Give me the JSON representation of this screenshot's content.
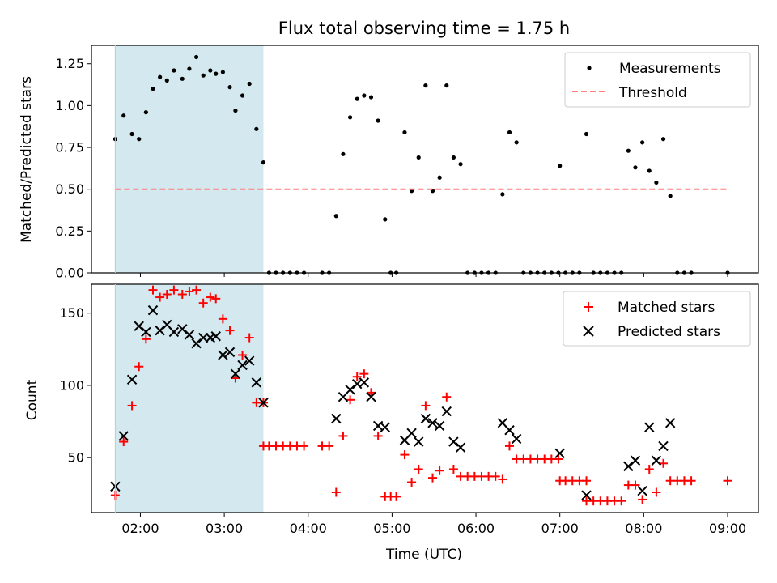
{
  "chart_data": [
    {
      "type": "scatter",
      "title": "Flux total observing time = 1.75 h",
      "xlabel": "",
      "ylabel": "Matched/Predicted stars",
      "x_unit": "time (UTC)",
      "xlim": [
        "01:25",
        "09:22"
      ],
      "ylim": [
        0,
        1.36
      ],
      "yticks": [
        0.0,
        0.25,
        0.5,
        0.75,
        1.0,
        1.25
      ],
      "ytick_labels": [
        "0.00",
        "0.25",
        "0.50",
        "0.75",
        "1.00",
        "1.25"
      ],
      "xticks": [
        "02:00",
        "03:00",
        "04:00",
        "05:00",
        "06:00",
        "07:00",
        "08:00",
        "09:00"
      ],
      "shaded_interval": {
        "from": "01:42",
        "to": "03:28",
        "color": "#d3e9ef"
      },
      "legend": {
        "position": "top-right",
        "entries": [
          "Measurements",
          "Threshold"
        ]
      },
      "series": [
        {
          "name": "Measurements",
          "marker": "dot",
          "color": "#000000",
          "points": [
            [
              "01:42",
              0.8
            ],
            [
              "01:48",
              0.94
            ],
            [
              "01:54",
              0.83
            ],
            [
              "01:59",
              0.8
            ],
            [
              "02:04",
              0.96
            ],
            [
              "02:09",
              1.1
            ],
            [
              "02:14",
              1.17
            ],
            [
              "02:19",
              1.15
            ],
            [
              "02:24",
              1.21
            ],
            [
              "02:30",
              1.16
            ],
            [
              "02:35",
              1.22
            ],
            [
              "02:40",
              1.29
            ],
            [
              "02:45",
              1.18
            ],
            [
              "02:50",
              1.21
            ],
            [
              "02:54",
              1.19
            ],
            [
              "02:59",
              1.2
            ],
            [
              "03:04",
              1.11
            ],
            [
              "03:08",
              0.97
            ],
            [
              "03:13",
              1.06
            ],
            [
              "03:18",
              1.13
            ],
            [
              "03:23",
              0.86
            ],
            [
              "03:28",
              0.66
            ],
            [
              "03:32",
              0.0
            ],
            [
              "03:37",
              0.0
            ],
            [
              "03:42",
              0.0
            ],
            [
              "03:47",
              0.0
            ],
            [
              "03:52",
              0.0
            ],
            [
              "03:57",
              0.0
            ],
            [
              "04:10",
              0.0
            ],
            [
              "04:15",
              0.0
            ],
            [
              "04:20",
              0.34
            ],
            [
              "04:25",
              0.71
            ],
            [
              "04:30",
              0.93
            ],
            [
              "04:35",
              1.04
            ],
            [
              "04:40",
              1.06
            ],
            [
              "04:45",
              1.05
            ],
            [
              "04:50",
              0.91
            ],
            [
              "04:55",
              0.32
            ],
            [
              "04:59",
              0.0
            ],
            [
              "05:03",
              0.0
            ],
            [
              "05:09",
              0.84
            ],
            [
              "05:14",
              0.49
            ],
            [
              "05:19",
              0.69
            ],
            [
              "05:24",
              1.12
            ],
            [
              "05:29",
              0.49
            ],
            [
              "05:34",
              0.57
            ],
            [
              "05:39",
              1.12
            ],
            [
              "05:44",
              0.69
            ],
            [
              "05:49",
              0.65
            ],
            [
              "05:54",
              0.0
            ],
            [
              "05:59",
              0.0
            ],
            [
              "06:04",
              0.0
            ],
            [
              "06:09",
              0.0
            ],
            [
              "06:14",
              0.0
            ],
            [
              "06:19",
              0.47
            ],
            [
              "06:24",
              0.84
            ],
            [
              "06:29",
              0.78
            ],
            [
              "06:34",
              0.0
            ],
            [
              "06:39",
              0.0
            ],
            [
              "06:44",
              0.0
            ],
            [
              "06:49",
              0.0
            ],
            [
              "06:54",
              0.0
            ],
            [
              "06:59",
              0.0
            ],
            [
              "07:00",
              0.64
            ],
            [
              "07:04",
              0.0
            ],
            [
              "07:09",
              0.0
            ],
            [
              "07:14",
              0.0
            ],
            [
              "07:19",
              0.83
            ],
            [
              "07:24",
              0.0
            ],
            [
              "07:29",
              0.0
            ],
            [
              "07:34",
              0.0
            ],
            [
              "07:39",
              0.0
            ],
            [
              "07:44",
              0.0
            ],
            [
              "07:49",
              0.73
            ],
            [
              "07:54",
              0.63
            ],
            [
              "07:59",
              0.78
            ],
            [
              "08:04",
              0.61
            ],
            [
              "08:09",
              0.54
            ],
            [
              "08:14",
              0.8
            ],
            [
              "08:19",
              0.46
            ],
            [
              "08:24",
              0.0
            ],
            [
              "08:29",
              0.0
            ],
            [
              "08:34",
              0.0
            ],
            [
              "09:00",
              0.0
            ]
          ]
        },
        {
          "name": "Threshold",
          "style": "dashed",
          "color": "#ff7f7f",
          "points": [
            [
              "01:42",
              0.5
            ],
            [
              "09:00",
              0.5
            ]
          ]
        }
      ]
    },
    {
      "type": "scatter",
      "title": "",
      "xlabel": "Time (UTC)",
      "ylabel": "Count",
      "xlim": [
        "01:25",
        "09:22"
      ],
      "ylim": [
        12,
        170
      ],
      "yticks": [
        50,
        100,
        150
      ],
      "ytick_labels": [
        "50",
        "100",
        "150"
      ],
      "xticks": [
        "02:00",
        "03:00",
        "04:00",
        "05:00",
        "06:00",
        "07:00",
        "08:00",
        "09:00"
      ],
      "xtick_labels": [
        "02:00",
        "03:00",
        "04:00",
        "05:00",
        "06:00",
        "07:00",
        "08:00",
        "09:00"
      ],
      "shaded_interval": {
        "from": "01:42",
        "to": "03:28",
        "color": "#d3e9ef"
      },
      "legend": {
        "position": "top-right",
        "entries": [
          "Matched stars",
          "Predicted stars"
        ]
      },
      "series": [
        {
          "name": "Matched stars",
          "marker": "plus",
          "color": "#ff0000",
          "points": [
            [
              "01:42",
              24
            ],
            [
              "01:48",
              61
            ],
            [
              "01:54",
              86
            ],
            [
              "01:59",
              113
            ],
            [
              "02:04",
              132
            ],
            [
              "02:09",
              166
            ],
            [
              "02:14",
              161
            ],
            [
              "02:19",
              163
            ],
            [
              "02:24",
              166
            ],
            [
              "02:30",
              163
            ],
            [
              "02:35",
              165
            ],
            [
              "02:40",
              166
            ],
            [
              "02:45",
              157
            ],
            [
              "02:50",
              161
            ],
            [
              "02:54",
              160
            ],
            [
              "02:59",
              146
            ],
            [
              "03:04",
              138
            ],
            [
              "03:08",
              105
            ],
            [
              "03:13",
              121
            ],
            [
              "03:18",
              133
            ],
            [
              "03:23",
              88
            ],
            [
              "03:28",
              88
            ],
            [
              "03:28",
              58
            ],
            [
              "03:32",
              58
            ],
            [
              "03:37",
              58
            ],
            [
              "03:42",
              58
            ],
            [
              "03:47",
              58
            ],
            [
              "03:52",
              58
            ],
            [
              "03:57",
              58
            ],
            [
              "04:10",
              58
            ],
            [
              "04:15",
              58
            ],
            [
              "04:20",
              26
            ],
            [
              "04:25",
              65
            ],
            [
              "04:30",
              90
            ],
            [
              "04:35",
              106
            ],
            [
              "04:40",
              108
            ],
            [
              "04:45",
              95
            ],
            [
              "04:50",
              65
            ],
            [
              "04:55",
              23
            ],
            [
              "04:59",
              23
            ],
            [
              "05:03",
              23
            ],
            [
              "05:09",
              52
            ],
            [
              "05:14",
              33
            ],
            [
              "05:19",
              42
            ],
            [
              "05:24",
              86
            ],
            [
              "05:29",
              36
            ],
            [
              "05:34",
              41
            ],
            [
              "05:39",
              92
            ],
            [
              "05:44",
              42
            ],
            [
              "05:49",
              37
            ],
            [
              "05:54",
              37
            ],
            [
              "05:59",
              37
            ],
            [
              "06:04",
              37
            ],
            [
              "06:09",
              37
            ],
            [
              "06:14",
              37
            ],
            [
              "06:19",
              35
            ],
            [
              "06:24",
              58
            ],
            [
              "06:29",
              49
            ],
            [
              "06:34",
              49
            ],
            [
              "06:39",
              49
            ],
            [
              "06:44",
              49
            ],
            [
              "06:49",
              49
            ],
            [
              "06:54",
              49
            ],
            [
              "06:59",
              49
            ],
            [
              "07:00",
              34
            ],
            [
              "07:04",
              34
            ],
            [
              "07:09",
              34
            ],
            [
              "07:14",
              34
            ],
            [
              "07:19",
              34
            ],
            [
              "07:19",
              20
            ],
            [
              "07:24",
              20
            ],
            [
              "07:29",
              20
            ],
            [
              "07:34",
              20
            ],
            [
              "07:39",
              20
            ],
            [
              "07:44",
              20
            ],
            [
              "07:49",
              31
            ],
            [
              "07:54",
              31
            ],
            [
              "07:59",
              21
            ],
            [
              "08:04",
              42
            ],
            [
              "08:09",
              26
            ],
            [
              "08:14",
              46
            ],
            [
              "08:19",
              34
            ],
            [
              "08:24",
              34
            ],
            [
              "08:29",
              34
            ],
            [
              "08:34",
              34
            ],
            [
              "09:00",
              34
            ]
          ]
        },
        {
          "name": "Predicted stars",
          "marker": "x",
          "color": "#000000",
          "points": [
            [
              "01:42",
              30
            ],
            [
              "01:48",
              65
            ],
            [
              "01:54",
              104
            ],
            [
              "01:59",
              141
            ],
            [
              "02:04",
              137
            ],
            [
              "02:09",
              152
            ],
            [
              "02:14",
              138
            ],
            [
              "02:19",
              142
            ],
            [
              "02:24",
              137
            ],
            [
              "02:30",
              139
            ],
            [
              "02:35",
              135
            ],
            [
              "02:40",
              129
            ],
            [
              "02:45",
              133
            ],
            [
              "02:50",
              133
            ],
            [
              "02:54",
              134
            ],
            [
              "02:59",
              121
            ],
            [
              "03:04",
              123
            ],
            [
              "03:08",
              108
            ],
            [
              "03:13",
              114
            ],
            [
              "03:18",
              117
            ],
            [
              "03:23",
              102
            ],
            [
              "03:28",
              88
            ],
            [
              "04:20",
              77
            ],
            [
              "04:25",
              92
            ],
            [
              "04:30",
              97
            ],
            [
              "04:35",
              101
            ],
            [
              "04:40",
              102
            ],
            [
              "04:45",
              92
            ],
            [
              "04:50",
              72
            ],
            [
              "04:55",
              71
            ],
            [
              "05:09",
              62
            ],
            [
              "05:14",
              67
            ],
            [
              "05:19",
              61
            ],
            [
              "05:24",
              77
            ],
            [
              "05:29",
              74
            ],
            [
              "05:34",
              72
            ],
            [
              "05:39",
              82
            ],
            [
              "05:44",
              61
            ],
            [
              "05:49",
              57
            ],
            [
              "06:19",
              74
            ],
            [
              "06:24",
              69
            ],
            [
              "06:29",
              63
            ],
            [
              "07:00",
              53
            ],
            [
              "07:19",
              24
            ],
            [
              "07:49",
              44
            ],
            [
              "07:54",
              48
            ],
            [
              "07:59",
              27
            ],
            [
              "08:04",
              71
            ],
            [
              "08:09",
              48
            ],
            [
              "08:14",
              58
            ],
            [
              "08:19",
              74
            ]
          ]
        }
      ]
    }
  ]
}
